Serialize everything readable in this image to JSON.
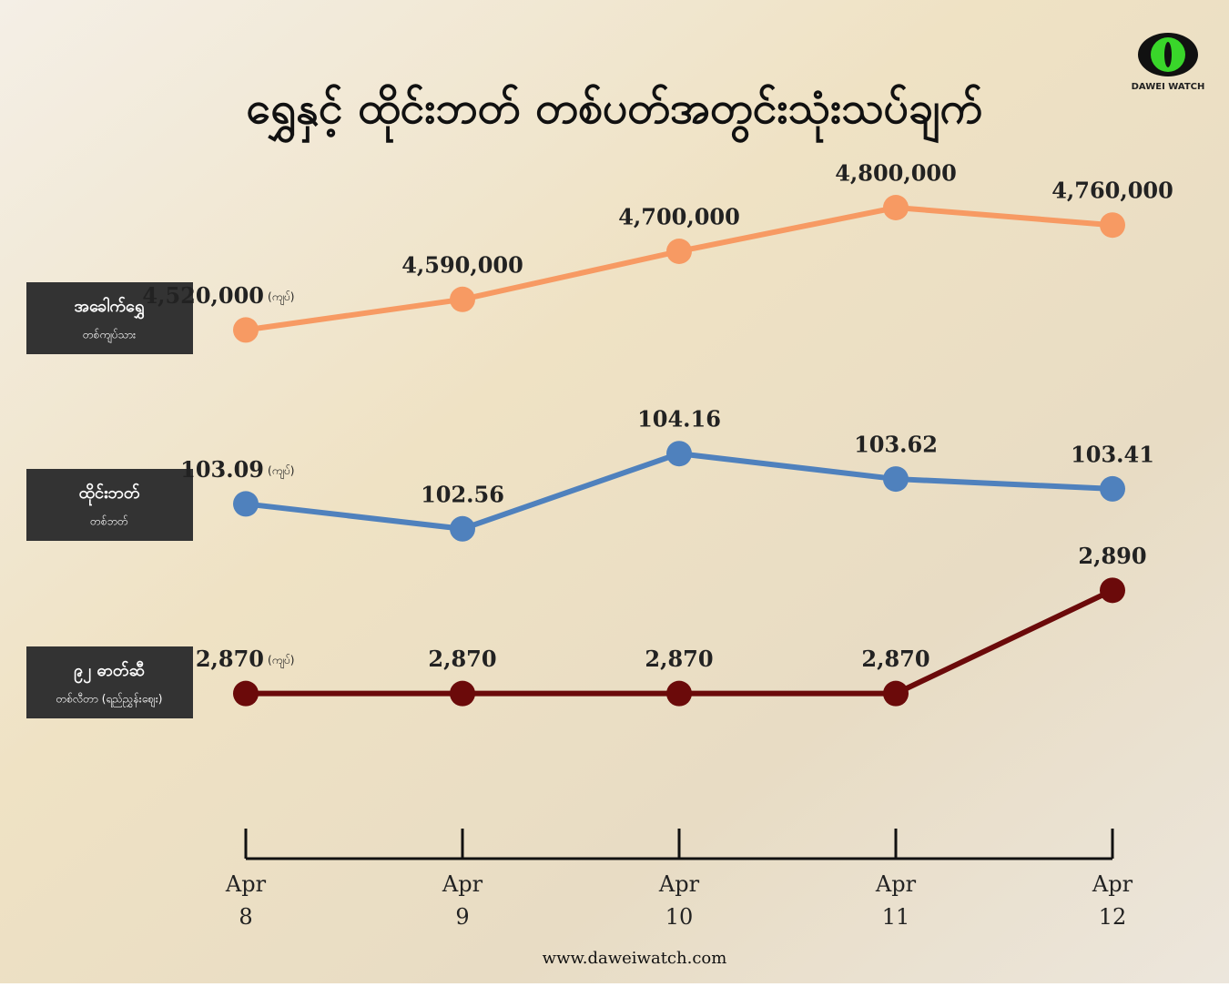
{
  "title": "ရွှေနှင့် ထိုင်းဘတ် တစ်ပတ်အတွင်းသုံးသပ်ချက်",
  "logo_text": "DAWEI WATCH",
  "website": "www.daweiwatch.com",
  "chart_data": {
    "type": "line",
    "categories": [
      "Apr 8",
      "Apr 9",
      "Apr 10",
      "Apr 11",
      "Apr 12"
    ],
    "series": [
      {
        "name": "အခေါက်ရွှေ",
        "sublabel": "တစ်ကျပ်သား",
        "unit": "(ကျပ်)",
        "color": "#f79a63",
        "values": [
          4520000,
          4590000,
          4700000,
          4800000,
          4760000
        ],
        "value_labels": [
          "4,520,000",
          "4,590,000",
          "4,700,000",
          "4,800,000",
          "4,760,000"
        ],
        "ylim": [
          4400000,
          4900000
        ]
      },
      {
        "name": "ထိုင်းဘတ်",
        "sublabel": "တစ်ဘတ်",
        "unit": "(ကျပ်)",
        "color": "#4f81bd",
        "values": [
          103.09,
          102.56,
          104.16,
          103.62,
          103.41
        ],
        "ylim": [
          101.8,
          104.9
        ]
      },
      {
        "name": "၉၂ ဓာတ်ဆီ",
        "sublabel": "တစ်လီတာ (ရည်ညွှန်းဈေး)",
        "unit": "(ကျပ်)",
        "color": "#6b0a0a",
        "values": [
          2870,
          2870,
          2870,
          2870,
          2890
        ],
        "value_labels": [
          "2,870",
          "2,870",
          "2,870",
          "2,870",
          "2,890"
        ],
        "ylim": [
          2865,
          2895
        ]
      }
    ]
  }
}
